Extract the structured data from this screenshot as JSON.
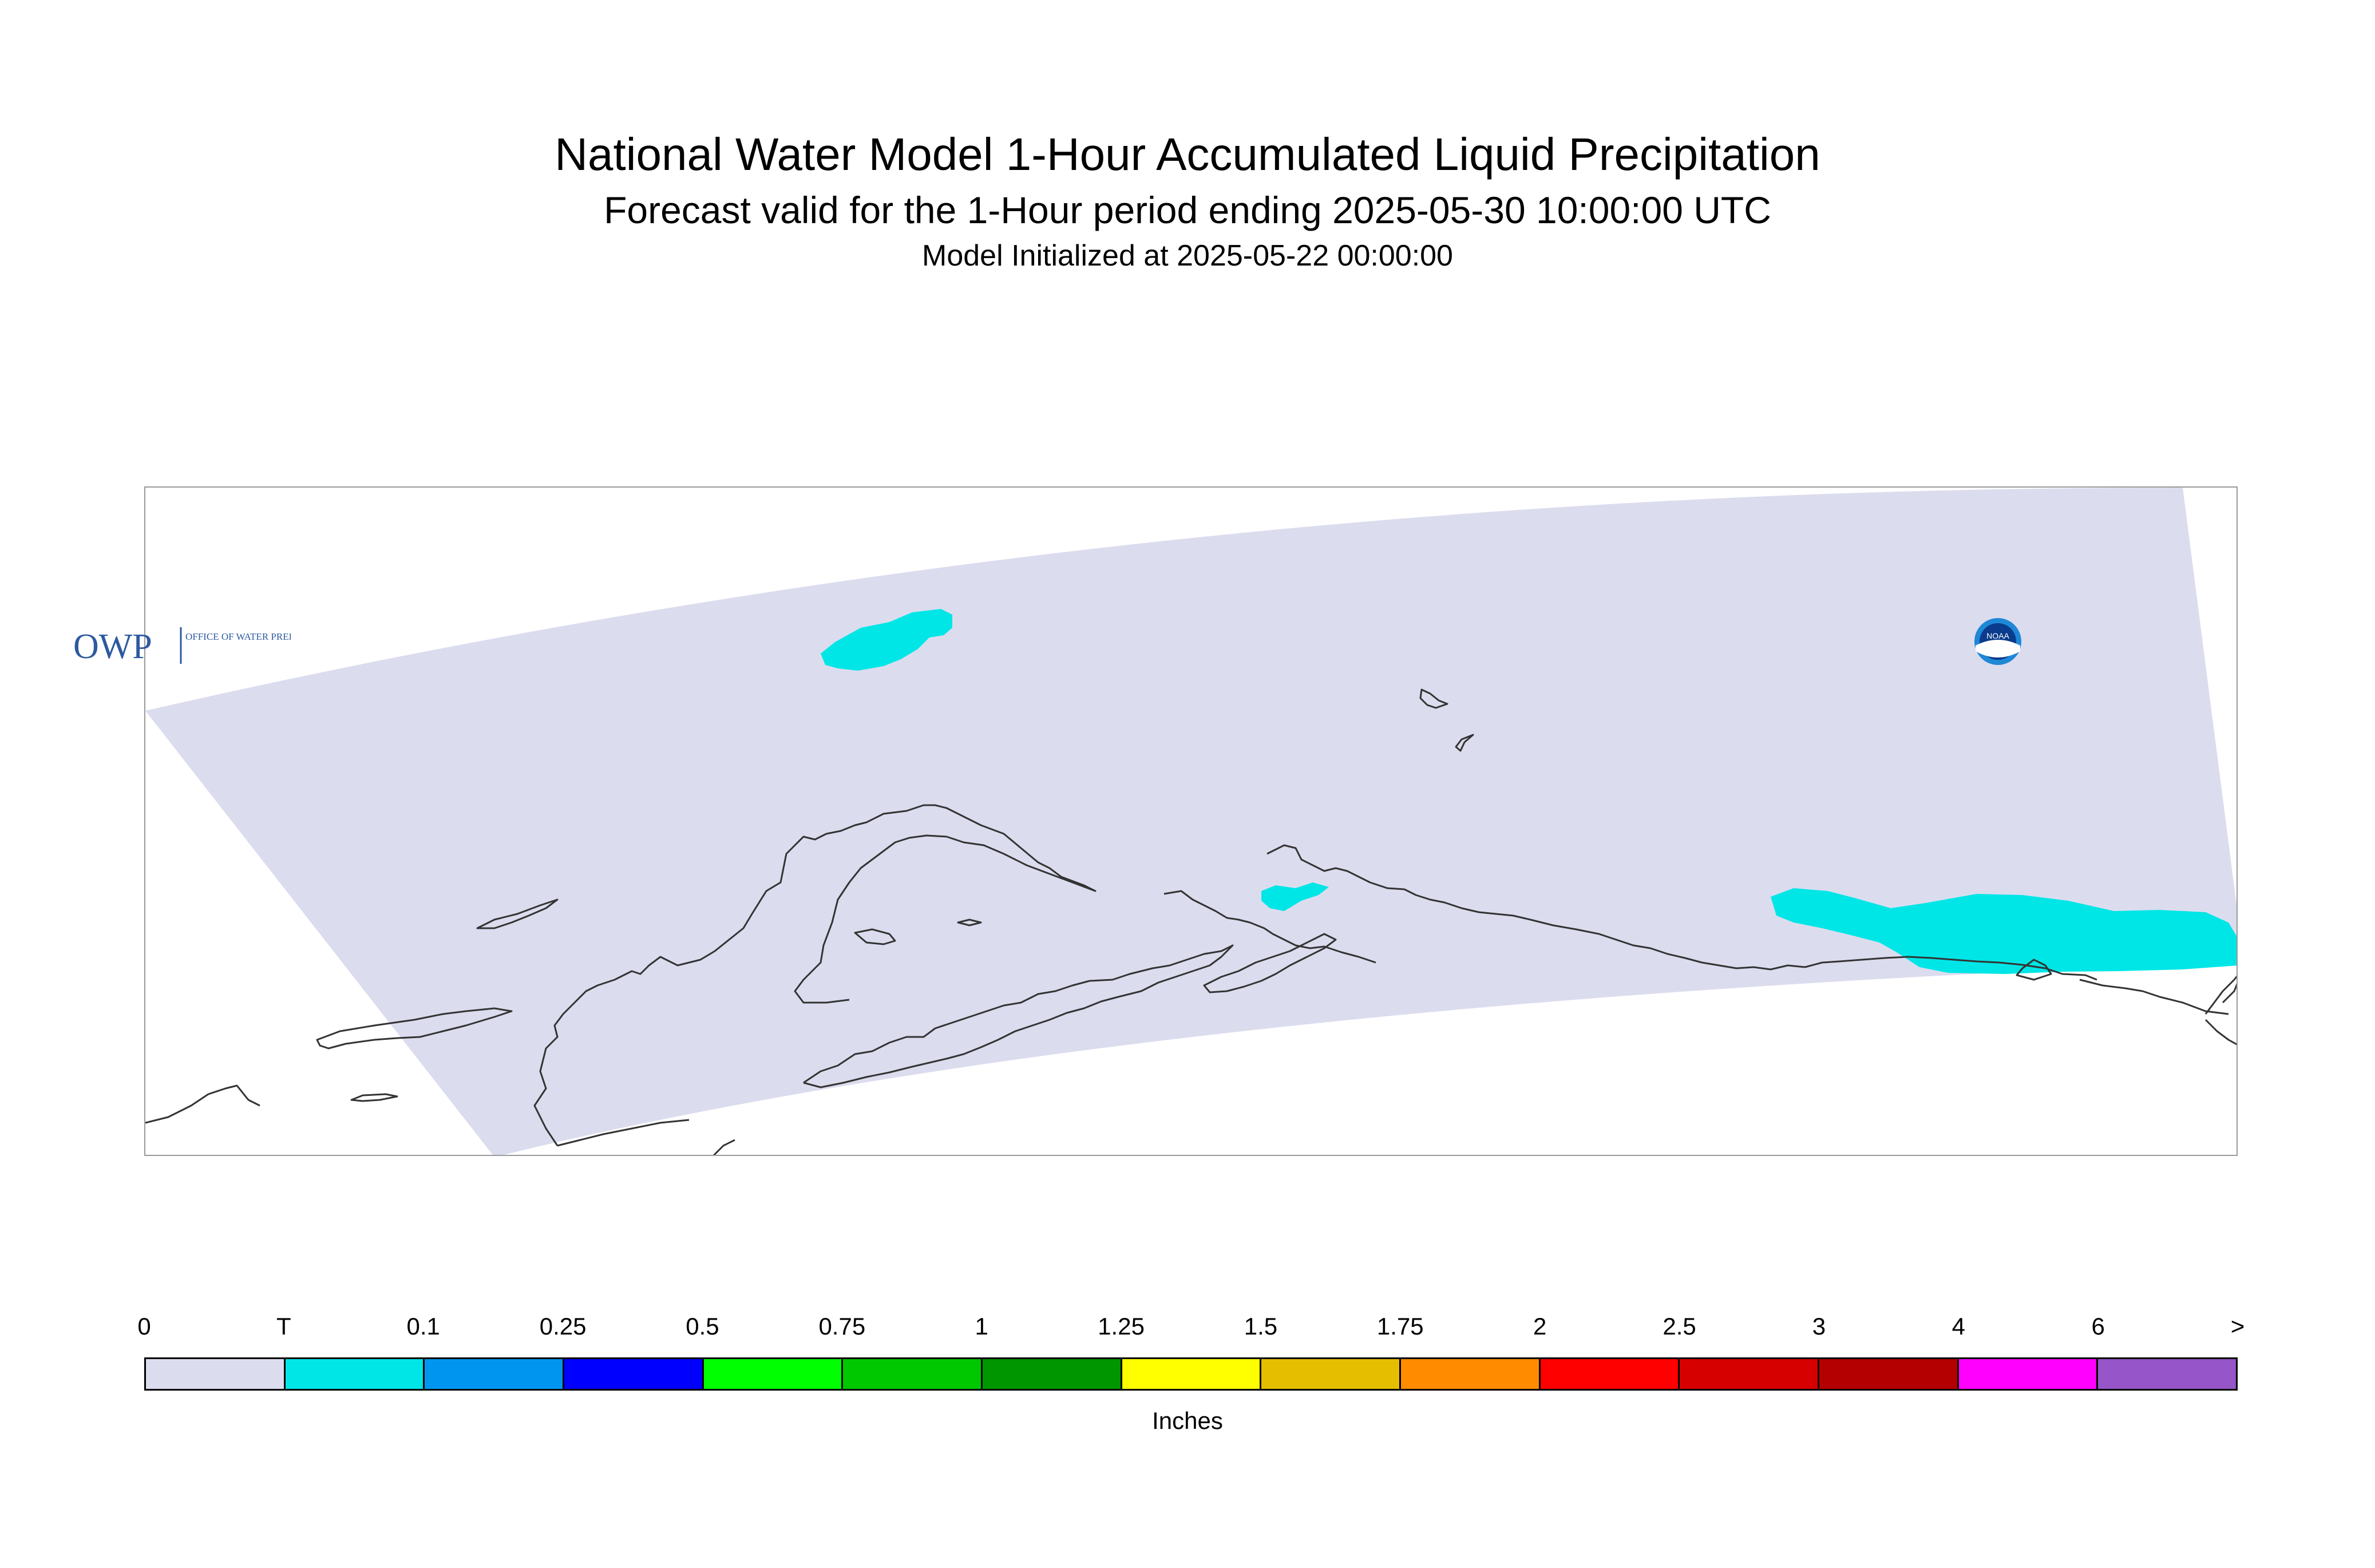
{
  "header": {
    "title": "National Water Model 1-Hour Accumulated Liquid Precipitation",
    "subtitle": "Forecast valid for the 1-Hour period ending 2025-05-30 10:00:00 UTC",
    "init_line": "Model Initialized at 2025-05-22 00:00:00"
  },
  "map": {
    "domain_fill_color": "#dcdcef",
    "coastline_color": "#333333",
    "precip_fill_color": "#00e6e6",
    "precip_category": "T"
  },
  "logos": {
    "owp_text": "OWP",
    "owp_subtext": "OFFICE OF WATER PREDICTION",
    "noaa_text": "NOAA"
  },
  "legend": {
    "tick_labels": [
      "0",
      "T",
      "0.1",
      "0.25",
      "0.5",
      "0.75",
      "1",
      "1.25",
      "1.5",
      "1.75",
      "2",
      "2.5",
      "3",
      "4",
      "6",
      ">"
    ],
    "colors": [
      "#dcdcef",
      "#00e6e6",
      "#0096f0",
      "#0000ff",
      "#00ff00",
      "#00c800",
      "#009600",
      "#ffff00",
      "#e6be00",
      "#ff8c00",
      "#ff0000",
      "#d70000",
      "#b40000",
      "#ff00ff",
      "#9655c8"
    ],
    "units": "Inches"
  }
}
